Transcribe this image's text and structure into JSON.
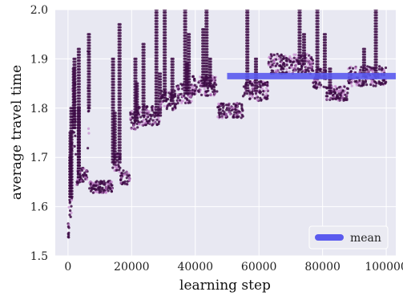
{
  "chart_data": {
    "type": "scatter",
    "xlabel": "learning step",
    "ylabel": "average travel time",
    "xlim": [
      -4000,
      103000
    ],
    "ylim": [
      1.5,
      2.0
    ],
    "xticks": [
      0,
      20000,
      40000,
      60000,
      80000,
      100000
    ],
    "yticks": [
      1.5,
      1.6,
      1.7,
      1.8,
      1.9,
      2.0
    ],
    "grid": true,
    "legend": {
      "position": "bottom-right",
      "entries": [
        "mean"
      ]
    },
    "colors": {
      "plot_bg": "#e8e8f2",
      "grid": "#ffffff",
      "points_dark": "#3d0a45",
      "points_light": "#c07ac8",
      "mean": "#5a5aee"
    },
    "mean": {
      "name": "mean",
      "value": 1.865,
      "x_start": 50000,
      "x_end": 103000
    },
    "segments": [
      {
        "x0": 0,
        "x1": 300,
        "y": 1.55,
        "spread": 0.02
      },
      {
        "x0": 300,
        "x1": 1200,
        "y": 1.62,
        "spread": 0.05,
        "spikes": [
          1.7,
          1.75,
          1.8
        ]
      },
      {
        "x0": 1200,
        "x1": 2500,
        "y": 1.76,
        "spread": 0.09,
        "spikes": [
          1.88,
          1.9
        ]
      },
      {
        "x0": 2500,
        "x1": 3800,
        "y": 1.66,
        "spread": 0.02,
        "spikes": [
          1.8,
          1.92
        ]
      },
      {
        "x0": 3800,
        "x1": 6200,
        "y": 1.665,
        "spread": 0.015
      },
      {
        "x0": 6200,
        "x1": 6700,
        "y": 1.8,
        "spread": 0.12,
        "spikes": [
          1.95
        ]
      },
      {
        "x0": 6700,
        "x1": 14000,
        "y": 1.64,
        "spread": 0.012
      },
      {
        "x0": 14000,
        "x1": 16500,
        "y": 1.69,
        "spread": 0.02,
        "spikes": [
          1.79,
          1.9,
          1.97
        ]
      },
      {
        "x0": 16500,
        "x1": 19500,
        "y": 1.66,
        "spread": 0.015
      },
      {
        "x0": 19500,
        "x1": 22000,
        "y": 1.775,
        "spread": 0.02,
        "spikes": [
          1.85,
          1.9
        ]
      },
      {
        "x0": 22000,
        "x1": 29000,
        "y": 1.785,
        "spread": 0.02,
        "spikes": [
          1.87,
          1.93,
          2.0
        ]
      },
      {
        "x0": 29000,
        "x1": 34000,
        "y": 1.815,
        "spread": 0.02,
        "spikes": [
          1.9,
          2.0
        ]
      },
      {
        "x0": 34000,
        "x1": 39000,
        "y": 1.83,
        "spread": 0.02,
        "spikes": [
          1.89,
          1.95,
          2.0
        ]
      },
      {
        "x0": 39000,
        "x1": 47000,
        "y": 1.845,
        "spread": 0.02,
        "spikes": [
          1.9,
          1.96,
          2.0
        ]
      },
      {
        "x0": 47000,
        "x1": 55000,
        "y": 1.795,
        "spread": 0.015
      },
      {
        "x0": 55000,
        "x1": 63000,
        "y": 1.835,
        "spread": 0.02,
        "spikes": [
          1.9,
          2.0
        ]
      },
      {
        "x0": 63000,
        "x1": 77000,
        "y": 1.89,
        "spread": 0.02,
        "spikes": [
          1.95,
          2.0
        ]
      },
      {
        "x0": 77000,
        "x1": 81000,
        "y": 1.86,
        "spread": 0.02,
        "spikes": [
          1.95,
          2.0
        ]
      },
      {
        "x0": 81000,
        "x1": 88000,
        "y": 1.83,
        "spread": 0.015,
        "spikes": [
          1.88
        ]
      },
      {
        "x0": 88000,
        "x1": 100000,
        "y": 1.865,
        "spread": 0.02,
        "spikes": [
          1.92,
          2.0
        ]
      }
    ]
  }
}
